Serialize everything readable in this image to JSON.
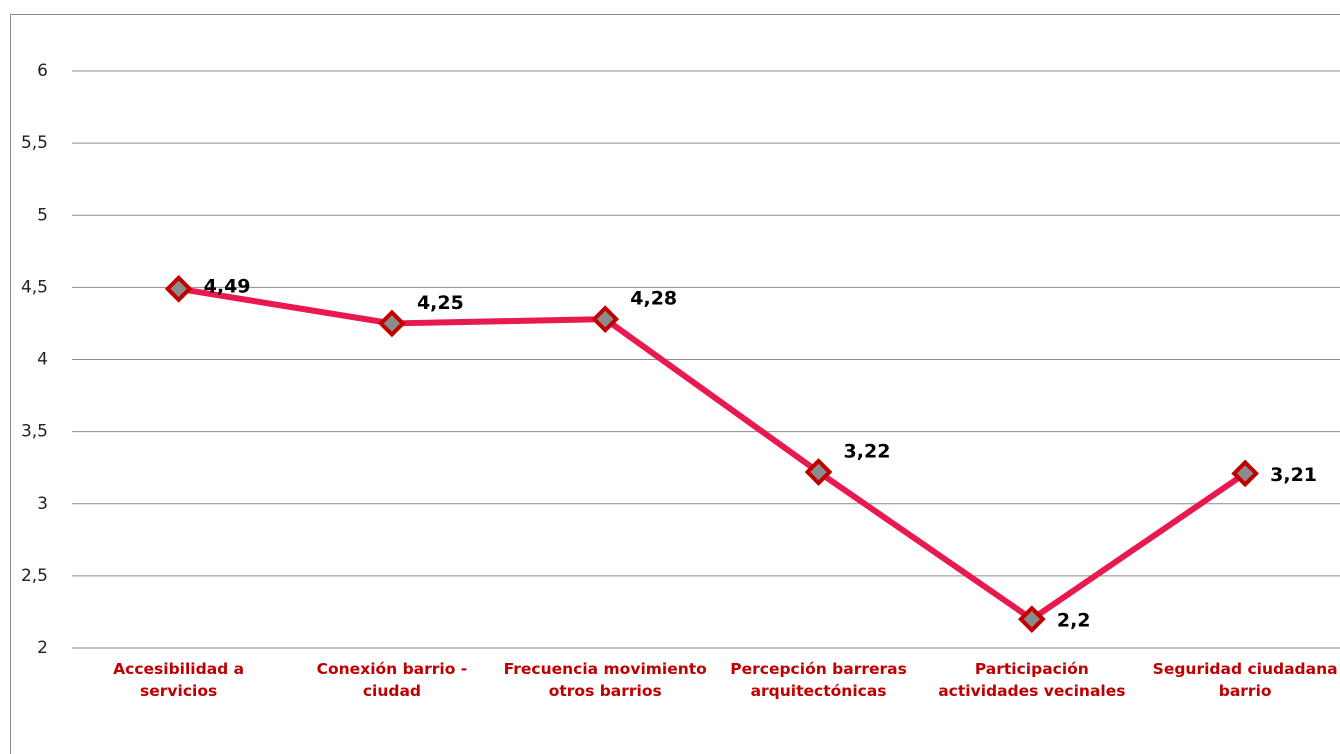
{
  "chart_data": {
    "type": "line",
    "categories": [
      "Accesibilidad a servicios",
      "Conexión barrio - ciudad",
      "Frecuencia movimiento otros barrios",
      "Percepción barreras arquitectónicas",
      "Participación actividades vecinales",
      "Seguridad ciudadana barrio"
    ],
    "series": [
      {
        "name": null,
        "color": "#e8194f",
        "values": [
          4.49,
          4.25,
          4.28,
          3.22,
          2.2,
          3.21
        ],
        "value_labels": [
          "4,49",
          "4,25",
          "4,28",
          "3,22",
          "2,2",
          "3,21"
        ]
      }
    ],
    "ylim": [
      2,
      6
    ],
    "yticks": [
      2,
      {
        "value": 2.5,
        "label": "2,5"
      },
      3,
      {
        "value": 3.5,
        "label": "3,5"
      },
      4,
      {
        "value": 4.5,
        "label": "4,5"
      },
      5,
      {
        "value": 5.5,
        "label": "5,5"
      },
      6
    ],
    "grid": true
  }
}
